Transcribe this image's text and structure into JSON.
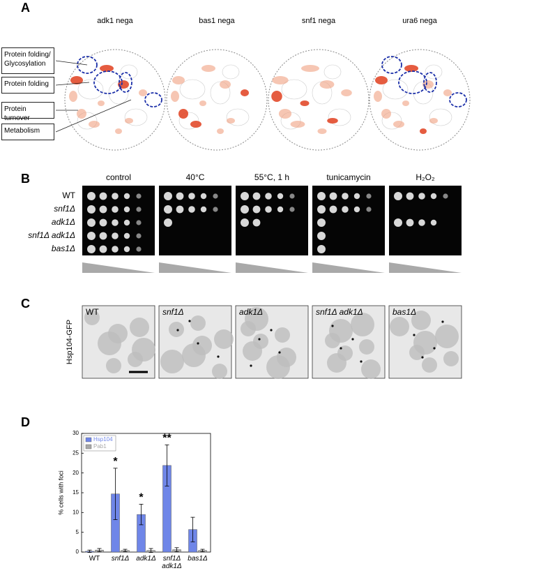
{
  "panel_a": {
    "label": "A",
    "maps": [
      {
        "title": "adk1 nega"
      },
      {
        "title": "bas1 nega"
      },
      {
        "title": "snf1 nega"
      },
      {
        "title": "ura6 nega"
      }
    ],
    "callouts": [
      "Protein folding/ Glycosylation",
      "Protein folding",
      "Protein turnover",
      "Metabolism"
    ]
  },
  "panel_b": {
    "label": "B",
    "conditions": [
      "control",
      "40°C",
      "55°C, 1 h",
      "tunicamycin",
      "H₂O₂"
    ],
    "strains": [
      "WT",
      "snf1Δ",
      "adk1Δ",
      "snf1Δ adk1Δ",
      "bas1Δ"
    ]
  },
  "panel_c": {
    "label": "C",
    "reporter": "Hsp104-GFP",
    "strains": [
      "WT",
      "snf1Δ",
      "adk1Δ",
      "snf1Δ adk1Δ",
      "bas1Δ"
    ]
  },
  "chart_data": {
    "type": "bar",
    "panel_label": "D",
    "y_label": "% cells with foci",
    "categories": [
      "WT",
      "snf1Δ",
      "adk1Δ",
      "snf1Δ adk1Δ",
      "bas1Δ"
    ],
    "series": [
      {
        "name": "Hsp104",
        "color": "#6f86e8",
        "values": [
          0.2,
          14.7,
          9.5,
          21.9,
          5.7
        ],
        "errors": [
          0.3,
          6.5,
          2.6,
          5.2,
          3.1
        ]
      },
      {
        "name": "Pab1",
        "color": "#a8a8a8",
        "values": [
          0.5,
          0.4,
          0.4,
          0.6,
          0.4
        ],
        "errors": [
          0.4,
          0.3,
          0.5,
          0.5,
          0.3
        ]
      }
    ],
    "significance": [
      null,
      "*",
      "*",
      "**",
      null
    ],
    "ylim": [
      0,
      30
    ],
    "yticks": [
      0,
      5,
      10,
      15,
      20,
      25,
      30
    ],
    "legend": "upper left"
  }
}
